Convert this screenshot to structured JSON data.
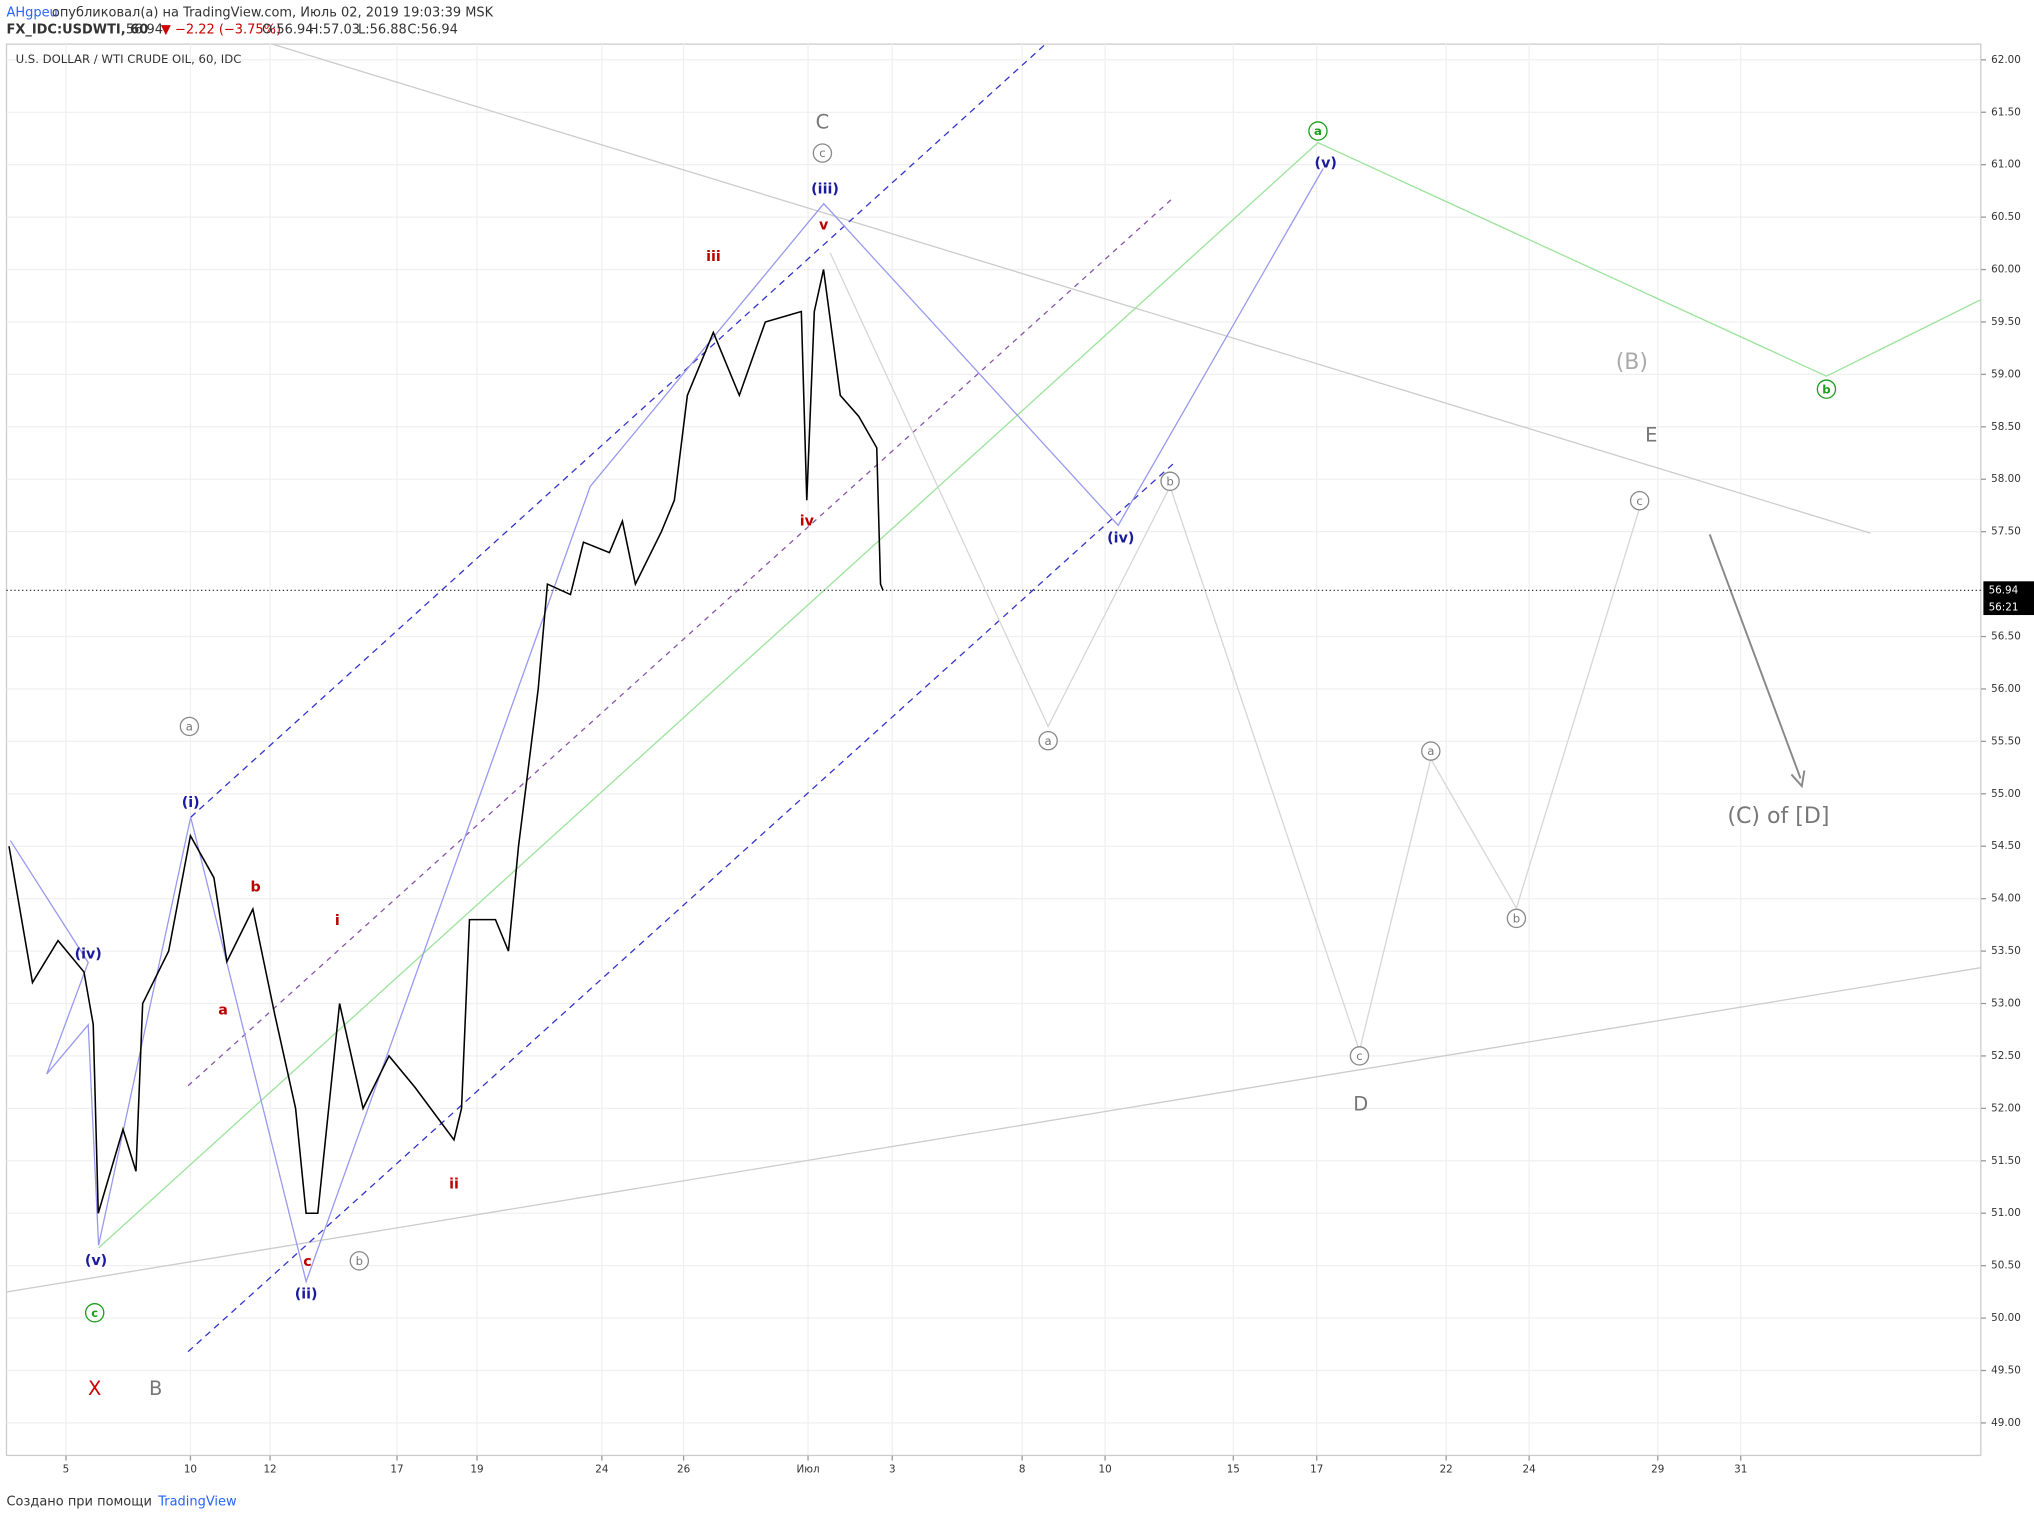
{
  "header": {
    "author": "AHgpeu",
    "published": "опубликовал(а) на TradingView.com, Июль 02, 2019 19:03:39 MSK",
    "symbol": "FX_IDC:USDWTI, 60",
    "last": "56.94",
    "change": "▼ −2.22 (−3.75%)",
    "open": "O:56.94",
    "high": "H:57.03",
    "low": "L:56.88",
    "close": "C:56.94"
  },
  "footer": {
    "text": "Создано при помощи",
    "brand": "TradingView"
  },
  "countdown": "56:21",
  "annotations": [
    "X",
    "B",
    "C",
    "(B)",
    "E",
    "D",
    "(C) of [D]"
  ],
  "circled_gray": [
    "a",
    "c",
    "b",
    "a",
    "b",
    "c",
    "a",
    "b",
    "c"
  ],
  "circled_green": [
    "a",
    "c",
    "b"
  ],
  "blue_labels": [
    "(i)",
    "(ii)",
    "(iii)",
    "(iv)",
    "(v)",
    "(iv)",
    "(v)"
  ],
  "red_labels": [
    "i",
    "ii",
    "iii",
    "iv",
    "v",
    "a",
    "b",
    "c"
  ],
  "chart_data": {
    "type": "line",
    "title": "U.S. DOLLAR / WTI CRUDE OIL, 60, IDC",
    "color": "#000000",
    "x": [
      -1.36,
      -0.8,
      -0.19,
      0.43,
      0.65,
      0.77,
      1.36,
      1.67,
      1.83,
      2.45,
      2.97,
      3.53,
      3.84,
      4.46,
      4.98,
      5.48,
      5.73,
      6.01,
      6.53,
      7.09,
      7.71,
      8.33,
      9.26,
      9.44,
      9.63,
      10.25,
      10.56,
      10.8,
      11.27,
      11.49,
      12.04,
      12.35,
      12.97,
      13.28,
      13.59,
      14.21,
      14.52,
      14.83,
      15.45,
      16.07,
      16.69,
      17.55,
      17.68,
      17.86,
      18.08,
      18.48,
      18.92,
      19.35,
      19.44,
      19.5
    ],
    "values": [
      54.5,
      53.2,
      53.6,
      53.3,
      52.8,
      51.0,
      51.8,
      51.4,
      53.0,
      53.5,
      54.6,
      54.2,
      53.4,
      53.9,
      52.9,
      52.0,
      51.0,
      51.0,
      53.0,
      52.0,
      52.5,
      52.2,
      51.7,
      52.0,
      53.8,
      53.8,
      53.5,
      54.5,
      56.0,
      57.0,
      56.9,
      57.4,
      57.3,
      57.6,
      57.0,
      57.5,
      57.8,
      58.8,
      59.4,
      58.8,
      59.5,
      59.6,
      57.8,
      59.6,
      60.0,
      58.8,
      58.6,
      58.3,
      57.0,
      56.94
    ],
    "last_price": 56.94,
    "xlim": [
      -1.42,
      45.7
    ],
    "ylim": [
      48.69,
      62.15
    ],
    "xticks": [
      {
        "value": 0,
        "label": "5"
      },
      {
        "value": 2.97,
        "label": "10"
      },
      {
        "value": 4.87,
        "label": "12"
      },
      {
        "value": 7.9,
        "label": "17"
      },
      {
        "value": 9.81,
        "label": "19"
      },
      {
        "value": 12.79,
        "label": "24"
      },
      {
        "value": 14.74,
        "label": "26"
      },
      {
        "value": 17.71,
        "label": "Июл"
      },
      {
        "value": 19.72,
        "label": "3"
      },
      {
        "value": 22.82,
        "label": "8"
      },
      {
        "value": 24.8,
        "label": "10"
      },
      {
        "value": 27.86,
        "label": "15"
      },
      {
        "value": 29.85,
        "label": "17"
      },
      {
        "value": 32.94,
        "label": "22"
      },
      {
        "value": 34.92,
        "label": "24"
      },
      {
        "value": 37.99,
        "label": "29"
      },
      {
        "value": 39.97,
        "label": "31"
      }
    ],
    "yticks": [
      {
        "value": 49,
        "label": "49.00"
      },
      {
        "value": 49.5,
        "label": "49.50"
      },
      {
        "value": 50,
        "label": "50.00"
      },
      {
        "value": 50.5,
        "label": "50.50"
      },
      {
        "value": 51,
        "label": "51.00"
      },
      {
        "value": 51.5,
        "label": "51.50"
      },
      {
        "value": 52,
        "label": "52.00"
      },
      {
        "value": 52.5,
        "label": "52.50"
      },
      {
        "value": 53,
        "label": "53.00"
      },
      {
        "value": 53.5,
        "label": "53.50"
      },
      {
        "value": 54,
        "label": "54.00"
      },
      {
        "value": 54.5,
        "label": "54.50"
      },
      {
        "value": 55,
        "label": "55.00"
      },
      {
        "value": 55.5,
        "label": "55.50"
      },
      {
        "value": 56,
        "label": "56.00"
      },
      {
        "value": 56.5,
        "label": "56.50"
      },
      {
        "value": 57.5,
        "label": "57.50"
      },
      {
        "value": 58,
        "label": "58.00"
      },
      {
        "value": 58.5,
        "label": "58.50"
      },
      {
        "value": 59,
        "label": "59.00"
      },
      {
        "value": 59.5,
        "label": "59.50"
      },
      {
        "value": 60,
        "label": "60.00"
      },
      {
        "value": 60.5,
        "label": "60.50"
      },
      {
        "value": 61,
        "label": "61.00"
      },
      {
        "value": 61.5,
        "label": "61.50"
      },
      {
        "value": 62,
        "label": "62.00"
      }
    ],
    "grid": true
  }
}
